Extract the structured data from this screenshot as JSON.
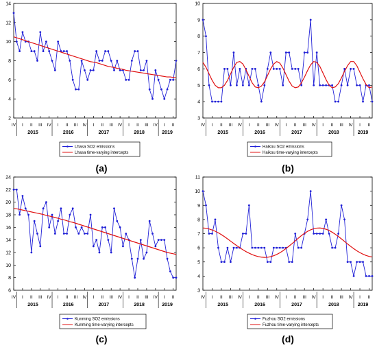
{
  "colors": {
    "series": "#1f1fd6",
    "trend": "#e01010",
    "axis": "#000000"
  },
  "chart_data": [
    {
      "panel_label": "(a)",
      "type": "line",
      "ylim": [
        2,
        14
      ],
      "yticks": [
        2,
        4,
        6,
        8,
        10,
        12,
        14
      ],
      "x_quarter_labels": [
        "IV",
        "I",
        "II",
        "III",
        "IV",
        "I",
        "II",
        "III",
        "IV",
        "I",
        "II",
        "III",
        "IV",
        "I",
        "II",
        "III",
        "IV",
        "I",
        "II"
      ],
      "x_year_labels": [
        "2015",
        "2016",
        "2017",
        "2018",
        "2019"
      ],
      "series": [
        {
          "name": "Lhasa SO2 emissions",
          "values": [
            13,
            10,
            9,
            11,
            10,
            10,
            9,
            9,
            8,
            11,
            9,
            10,
            9,
            8,
            7,
            10,
            9,
            9,
            9,
            8,
            6,
            5,
            5,
            8,
            7,
            6,
            7,
            7,
            9,
            8,
            8,
            9,
            9,
            8,
            7,
            8,
            7,
            7,
            6,
            6,
            8,
            9,
            9,
            7,
            7,
            8,
            5,
            4,
            7,
            6,
            5,
            4,
            5,
            6,
            6,
            8
          ]
        },
        {
          "name": "Lhasa time-varying intercepts",
          "values": [
            10.5,
            10.4,
            10.3,
            10.2,
            10.1,
            10.0,
            9.9,
            9.8,
            9.7,
            9.6,
            9.5,
            9.4,
            9.3,
            9.2,
            9.1,
            9.0,
            8.9,
            8.8,
            8.7,
            8.6,
            8.5,
            8.4,
            8.3,
            8.2,
            8.1,
            8.0,
            7.9,
            7.85,
            7.8,
            7.7,
            7.6,
            7.5,
            7.4,
            7.35,
            7.3,
            7.2,
            7.15,
            7.1,
            7.0,
            6.95,
            6.9,
            6.85,
            6.8,
            6.75,
            6.7,
            6.65,
            6.6,
            6.55,
            6.5,
            6.45,
            6.4,
            6.35,
            6.3,
            6.3,
            6.25,
            6.2
          ]
        }
      ]
    },
    {
      "panel_label": "(b)",
      "type": "line",
      "ylim": [
        3,
        10
      ],
      "yticks": [
        3,
        4,
        5,
        6,
        7,
        8,
        9,
        10
      ],
      "x_quarter_labels": [
        "IV",
        "I",
        "II",
        "III",
        "IV",
        "I",
        "II",
        "III",
        "IV",
        "I",
        "II",
        "III",
        "IV",
        "I",
        "II",
        "III",
        "IV",
        "I",
        "II"
      ],
      "x_year_labels": [
        "2015",
        "2016",
        "2017",
        "2018",
        "2019"
      ],
      "series": [
        {
          "name": "Haikou SO2 emissions",
          "values": [
            9,
            8,
            5,
            4,
            4,
            4,
            4,
            6,
            6,
            5,
            7,
            5,
            6,
            5,
            6,
            5,
            6,
            6,
            5,
            4,
            5,
            6,
            7,
            6,
            6,
            6,
            5,
            7,
            7,
            6,
            6,
            6,
            5,
            7,
            7,
            9,
            5,
            7,
            5,
            5,
            5,
            5,
            5,
            4,
            4,
            5,
            6,
            5,
            6,
            6,
            5,
            5,
            4,
            5,
            5,
            4
          ]
        },
        {
          "name": "Haikou time-varying intercepts",
          "values": [
            6.4,
            6.1,
            5.7,
            5.3,
            5.0,
            4.85,
            4.85,
            5.0,
            5.3,
            5.7,
            6.1,
            6.4,
            6.45,
            6.3,
            5.95,
            5.55,
            5.15,
            4.9,
            4.85,
            4.95,
            5.2,
            5.6,
            6.0,
            6.3,
            6.45,
            6.35,
            6.05,
            5.65,
            5.25,
            4.95,
            4.85,
            4.9,
            5.15,
            5.5,
            5.9,
            6.25,
            6.45,
            6.4,
            6.15,
            5.75,
            5.35,
            5.0,
            4.85,
            4.9,
            5.1,
            5.45,
            5.85,
            6.2,
            6.45,
            6.45,
            6.2,
            5.8,
            5.4,
            5.05,
            4.85,
            4.9
          ]
        }
      ]
    },
    {
      "panel_label": "(c)",
      "type": "line",
      "ylim": [
        6,
        24
      ],
      "yticks": [
        6,
        8,
        10,
        12,
        14,
        16,
        18,
        20,
        22,
        24
      ],
      "x_quarter_labels": [
        "IV",
        "I",
        "II",
        "III",
        "IV",
        "I",
        "II",
        "III",
        "IV",
        "I",
        "II",
        "III",
        "IV",
        "I",
        "II",
        "III",
        "IV",
        "I",
        "II"
      ],
      "x_year_labels": [
        "2015",
        "2016",
        "2017",
        "2018",
        "2019"
      ],
      "series": [
        {
          "name": "Kunming SO2 emissions",
          "values": [
            22,
            22,
            18,
            21,
            19,
            18,
            12,
            17,
            15,
            13,
            19,
            20,
            16,
            18,
            15,
            17,
            19,
            15,
            15,
            18,
            19,
            16,
            15,
            16,
            15,
            15,
            18,
            13,
            14,
            12,
            16,
            16,
            14,
            12,
            19,
            17,
            16,
            13,
            15,
            14,
            11,
            8,
            11,
            14,
            11,
            12,
            17,
            15,
            13,
            14,
            14,
            14,
            11,
            9,
            8,
            8
          ]
        },
        {
          "name": "Kunming time-varying intercepts",
          "values": [
            19.0,
            18.95,
            18.85,
            18.75,
            18.65,
            18.55,
            18.45,
            18.35,
            18.25,
            18.15,
            18.05,
            17.9,
            17.8,
            17.7,
            17.55,
            17.45,
            17.3,
            17.2,
            17.05,
            16.9,
            16.8,
            16.65,
            16.5,
            16.35,
            16.2,
            16.05,
            15.9,
            15.75,
            15.6,
            15.45,
            15.3,
            15.15,
            15.0,
            14.85,
            14.7,
            14.55,
            14.4,
            14.25,
            14.1,
            13.95,
            13.8,
            13.65,
            13.5,
            13.35,
            13.2,
            13.05,
            12.9,
            12.75,
            12.6,
            12.45,
            12.3,
            12.15,
            12.0,
            11.9,
            11.8,
            11.7
          ]
        }
      ]
    },
    {
      "panel_label": "(d)",
      "type": "line",
      "ylim": [
        3,
        11
      ],
      "yticks": [
        3,
        4,
        5,
        6,
        7,
        8,
        9,
        10,
        11
      ],
      "x_quarter_labels": [
        "IV",
        "I",
        "II",
        "III",
        "IV",
        "I",
        "II",
        "III",
        "IV",
        "I",
        "II",
        "III",
        "IV",
        "I",
        "II",
        "III",
        "IV",
        "I",
        "II"
      ],
      "x_year_labels": [
        "2015",
        "2016",
        "2017",
        "2018",
        "2019"
      ],
      "series": [
        {
          "name": "Fuzhou SO2 emissions",
          "values": [
            10,
            9,
            7,
            7,
            8,
            6,
            5,
            5,
            6,
            5,
            6,
            6,
            6,
            7,
            7,
            9,
            6,
            6,
            6,
            6,
            6,
            5,
            5,
            6,
            6,
            6,
            6,
            6,
            5,
            5,
            7,
            6,
            6,
            7,
            8,
            10,
            7,
            7,
            7,
            7,
            8,
            7,
            6,
            6,
            7,
            9,
            8,
            5,
            5,
            4,
            5,
            5,
            5,
            4,
            4,
            4
          ]
        },
        {
          "name": "Fuzhou time-varying intercepts",
          "values": [
            7.4,
            7.38,
            7.33,
            7.26,
            7.17,
            7.06,
            6.93,
            6.79,
            6.63,
            6.47,
            6.31,
            6.15,
            6.0,
            5.86,
            5.73,
            5.62,
            5.52,
            5.44,
            5.38,
            5.34,
            5.32,
            5.33,
            5.37,
            5.44,
            5.53,
            5.65,
            5.79,
            5.95,
            6.12,
            6.3,
            6.49,
            6.68,
            6.86,
            7.02,
            7.16,
            7.27,
            7.35,
            7.39,
            7.4,
            7.37,
            7.31,
            7.22,
            7.1,
            6.96,
            6.8,
            6.63,
            6.45,
            6.27,
            6.1,
            5.94,
            5.79,
            5.66,
            5.55,
            5.46,
            5.39,
            5.35
          ]
        }
      ]
    }
  ]
}
